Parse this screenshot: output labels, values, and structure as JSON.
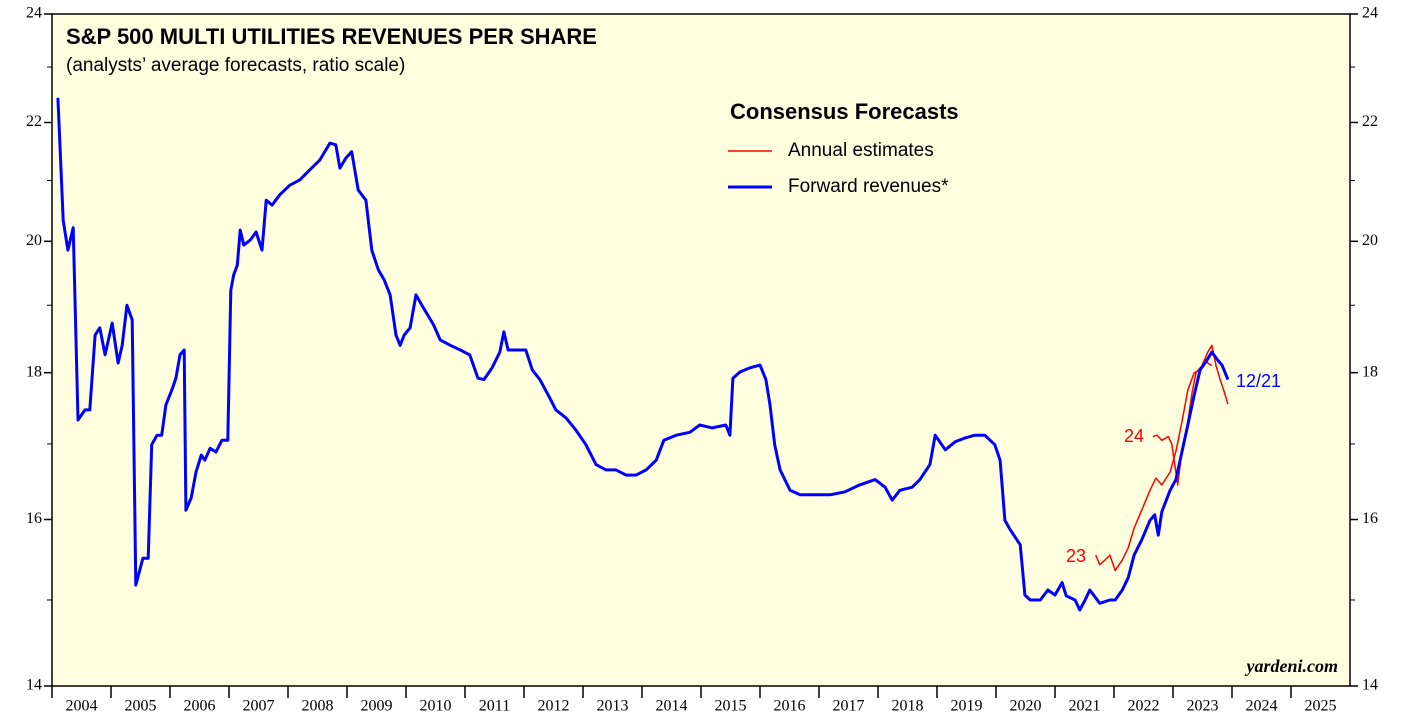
{
  "chart_data": {
    "type": "line",
    "title": "S&P 500 MULTI UTILITIES REVENUES PER SHARE",
    "subtitle": "(analysts’ average forecasts, ratio scale)",
    "legend_title": "Consensus Forecasts",
    "source": "yardeni.com",
    "log_scale": true,
    "grid": false,
    "xlim": [
      2004,
      2026
    ],
    "xticks": [
      2004,
      2005,
      2006,
      2007,
      2008,
      2009,
      2010,
      2011,
      2012,
      2013,
      2014,
      2015,
      2016,
      2017,
      2018,
      2019,
      2020,
      2021,
      2022,
      2023,
      2024,
      2025
    ],
    "ylim": [
      14,
      24
    ],
    "yticks": [
      14,
      16,
      18,
      20,
      22,
      24
    ],
    "yminor": [
      15,
      17,
      19,
      21,
      23
    ],
    "series": [
      {
        "name": "Annual estimates",
        "color": "#ff0000",
        "width": 1.5,
        "x": [
          2021.69,
          2021.76,
          2021.85,
          2021.93,
          2022.02,
          2022.14,
          2022.24,
          2022.34,
          2022.47,
          2022.61,
          2022.71,
          2022.81,
          2022.95,
          2023.05,
          2023.15,
          2023.25,
          2023.36,
          2023.46,
          2023.56,
          2023.66
        ],
        "values": [
          15.55,
          15.43,
          15.49,
          15.55,
          15.36,
          15.49,
          15.64,
          15.89,
          16.12,
          16.38,
          16.54,
          16.45,
          16.62,
          16.9,
          17.3,
          17.75,
          18.0,
          18.04,
          18.16,
          18.1
        ]
      },
      {
        "color": "#ff0000",
        "width": 1.5,
        "x": [
          2022.66,
          2022.73,
          2022.81,
          2022.92,
          2022.98,
          2023.08,
          2023.15,
          2023.25,
          2023.32,
          2023.39,
          2023.49,
          2023.59,
          2023.66,
          2023.73,
          2023.8,
          2023.86,
          2023.93
        ],
        "values": [
          17.1,
          17.12,
          17.05,
          17.1,
          17.0,
          16.45,
          16.9,
          17.3,
          17.7,
          18.0,
          18.1,
          18.3,
          18.4,
          18.1,
          17.9,
          17.75,
          17.55
        ]
      },
      {
        "name": "Forward revenues*",
        "color": "#0000ff",
        "width": 3,
        "x": [
          2004.1,
          2004.19,
          2004.27,
          2004.36,
          2004.44,
          2004.56,
          2004.64,
          2004.73,
          2004.81,
          2004.9,
          2005.02,
          2005.12,
          2005.19,
          2005.27,
          2005.36,
          2005.42,
          2005.54,
          2005.63,
          2005.69,
          2005.78,
          2005.86,
          2005.93,
          2006.03,
          2006.1,
          2006.17,
          2006.24,
          2006.27,
          2006.36,
          2006.44,
          2006.53,
          2006.59,
          2006.68,
          2006.78,
          2006.88,
          2006.98,
          2007.03,
          2007.08,
          2007.14,
          2007.19,
          2007.25,
          2007.36,
          2007.46,
          2007.56,
          2007.63,
          2007.73,
          2007.86,
          2008.03,
          2008.2,
          2008.37,
          2008.54,
          2008.71,
          2008.81,
          2008.88,
          2008.98,
          2009.08,
          2009.19,
          2009.32,
          2009.42,
          2009.53,
          2009.63,
          2009.73,
          2009.83,
          2009.9,
          2009.97,
          2010.07,
          2010.17,
          2010.27,
          2010.37,
          2010.47,
          2010.58,
          2010.75,
          2010.92,
          2011.08,
          2011.22,
          2011.32,
          2011.46,
          2011.59,
          2011.66,
          2011.73,
          2011.86,
          2012.03,
          2012.14,
          2012.27,
          2012.41,
          2012.54,
          2012.71,
          2012.88,
          2013.05,
          2013.22,
          2013.39,
          2013.56,
          2013.73,
          2013.9,
          2014.07,
          2014.24,
          2014.37,
          2014.58,
          2014.81,
          2014.98,
          2015.19,
          2015.42,
          2015.49,
          2015.54,
          2015.66,
          2015.83,
          2016.0,
          2016.1,
          2016.17,
          2016.25,
          2016.34,
          2016.51,
          2016.68,
          2016.93,
          2017.19,
          2017.44,
          2017.69,
          2017.95,
          2018.12,
          2018.24,
          2018.37,
          2018.58,
          2018.71,
          2018.88,
          2018.97,
          2019.14,
          2019.31,
          2019.47,
          2019.64,
          2019.81,
          2019.98,
          2020.07,
          2020.15,
          2020.24,
          2020.41,
          2020.49,
          2020.58,
          2020.75,
          2020.88,
          2021.0,
          2021.12,
          2021.19,
          2021.34,
          2021.42,
          2021.51,
          2021.59,
          2021.76,
          2021.93,
          2022.02,
          2022.14,
          2022.24,
          2022.34,
          2022.47,
          2022.61,
          2022.69,
          2022.75,
          2022.81,
          2022.95,
          2023.05,
          2023.15,
          2023.25,
          2023.36,
          2023.46,
          2023.56,
          2023.66,
          2023.76,
          2023.83,
          2023.93
        ],
        "values": [
          22.44,
          20.34,
          19.86,
          20.22,
          17.33,
          17.47,
          17.47,
          18.55,
          18.66,
          18.26,
          18.73,
          18.14,
          18.4,
          19.0,
          18.78,
          15.18,
          15.51,
          15.51,
          16.99,
          17.12,
          17.12,
          17.54,
          17.75,
          17.92,
          18.26,
          18.33,
          16.12,
          16.28,
          16.62,
          16.85,
          16.78,
          16.94,
          16.89,
          17.05,
          17.05,
          19.23,
          19.47,
          19.62,
          20.18,
          19.94,
          20.02,
          20.15,
          19.86,
          20.67,
          20.59,
          20.76,
          20.92,
          21.01,
          21.18,
          21.35,
          21.64,
          21.61,
          21.21,
          21.38,
          21.49,
          20.84,
          20.67,
          19.86,
          19.55,
          19.39,
          19.16,
          18.55,
          18.4,
          18.55,
          18.66,
          19.16,
          19.0,
          18.85,
          18.7,
          18.48,
          18.4,
          18.33,
          18.26,
          17.92,
          17.9,
          18.07,
          18.3,
          18.6,
          18.33,
          18.33,
          18.33,
          18.04,
          17.9,
          17.68,
          17.47,
          17.36,
          17.19,
          16.99,
          16.72,
          16.65,
          16.65,
          16.58,
          16.58,
          16.65,
          16.78,
          17.05,
          17.12,
          17.16,
          17.26,
          17.22,
          17.26,
          17.12,
          17.92,
          18.01,
          18.07,
          18.11,
          17.9,
          17.54,
          16.99,
          16.65,
          16.38,
          16.32,
          16.32,
          16.32,
          16.36,
          16.45,
          16.52,
          16.42,
          16.25,
          16.38,
          16.42,
          16.52,
          16.72,
          17.12,
          16.92,
          17.03,
          17.08,
          17.12,
          17.12,
          16.99,
          16.78,
          15.99,
          15.87,
          15.68,
          15.06,
          15.0,
          15.0,
          15.12,
          15.06,
          15.21,
          15.05,
          15.0,
          14.88,
          15.0,
          15.12,
          14.96,
          15.0,
          15.0,
          15.12,
          15.27,
          15.55,
          15.74,
          15.99,
          16.06,
          15.8,
          16.1,
          16.38,
          16.52,
          16.89,
          17.26,
          17.68,
          18.04,
          18.16,
          18.3,
          18.18,
          18.11,
          17.9
        ]
      }
    ],
    "annotations": [
      {
        "text": "23",
        "color": "#ff0000"
      },
      {
        "text": "24",
        "color": "#ff0000"
      },
      {
        "text": "12/21",
        "color": "#0000ff"
      }
    ]
  }
}
